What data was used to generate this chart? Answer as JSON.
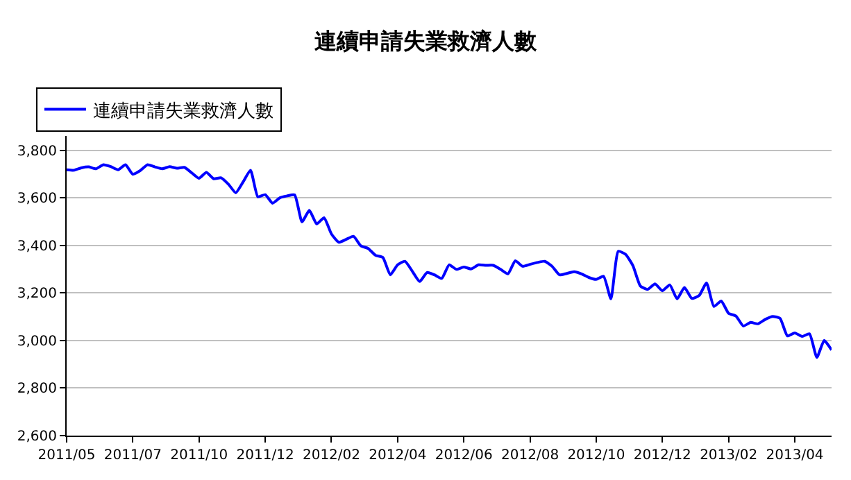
{
  "chart_data": {
    "type": "line",
    "title": "連續申請失業救濟人數",
    "categories": [
      "2011/05",
      null,
      null,
      null,
      null,
      null,
      null,
      null,
      null,
      "2011/07",
      null,
      null,
      null,
      null,
      null,
      null,
      null,
      null,
      "2011/10",
      null,
      null,
      null,
      null,
      null,
      null,
      null,
      null,
      "2011/12",
      null,
      null,
      null,
      null,
      null,
      null,
      null,
      null,
      "2012/02",
      null,
      null,
      null,
      null,
      null,
      null,
      null,
      null,
      "2012/04",
      null,
      null,
      null,
      null,
      null,
      null,
      null,
      null,
      "2012/06",
      null,
      null,
      null,
      null,
      null,
      null,
      null,
      null,
      "2012/08",
      null,
      null,
      null,
      null,
      null,
      null,
      null,
      null,
      "2012/10",
      null,
      null,
      null,
      null,
      null,
      null,
      null,
      null,
      "2012/12",
      null,
      null,
      null,
      null,
      null,
      null,
      null,
      null,
      "2013/02",
      null,
      null,
      null,
      null,
      null,
      null,
      null,
      null,
      "2013/04",
      null,
      null,
      null,
      null,
      null
    ],
    "series": [
      {
        "name": "連續申請失業救濟人數",
        "color": "#0000ff",
        "values": [
          3718,
          3716,
          3726,
          3730,
          3722,
          3739,
          3731,
          3718,
          3739,
          3699,
          3714,
          3739,
          3730,
          3722,
          3731,
          3724,
          3728,
          3705,
          3682,
          3707,
          3680,
          3684,
          3657,
          3621,
          3667,
          3716,
          3604,
          3613,
          3577,
          3600,
          3608,
          3612,
          3499,
          3547,
          3490,
          3516,
          3448,
          3413,
          3425,
          3438,
          3398,
          3387,
          3358,
          3349,
          3276,
          3318,
          3333,
          3291,
          3248,
          3286,
          3276,
          3261,
          3318,
          3299,
          3309,
          3301,
          3318,
          3316,
          3316,
          3299,
          3280,
          3335,
          3312,
          3320,
          3328,
          3333,
          3312,
          3276,
          3282,
          3289,
          3280,
          3265,
          3257,
          3270,
          3175,
          3375,
          3362,
          3314,
          3229,
          3215,
          3238,
          3209,
          3234,
          3175,
          3223,
          3177,
          3189,
          3242,
          3143,
          3166,
          3114,
          3103,
          3061,
          3076,
          3070,
          3089,
          3101,
          3093,
          3019,
          3032,
          3017,
          3028,
          2929,
          3000,
          2960
        ]
      }
    ],
    "ylim": [
      2600,
      3860
    ],
    "yticks": [
      {
        "value": 2600,
        "label": "2,600"
      },
      {
        "value": 2800,
        "label": "2,800"
      },
      {
        "value": 3000,
        "label": "3,000"
      },
      {
        "value": 3200,
        "label": "3,200"
      },
      {
        "value": 3400,
        "label": "3,400"
      },
      {
        "value": 3600,
        "label": "3,600"
      },
      {
        "value": 3800,
        "label": "3,800"
      }
    ],
    "grid": "y",
    "legend": "top left",
    "marker": "none",
    "line_style": "solid"
  }
}
